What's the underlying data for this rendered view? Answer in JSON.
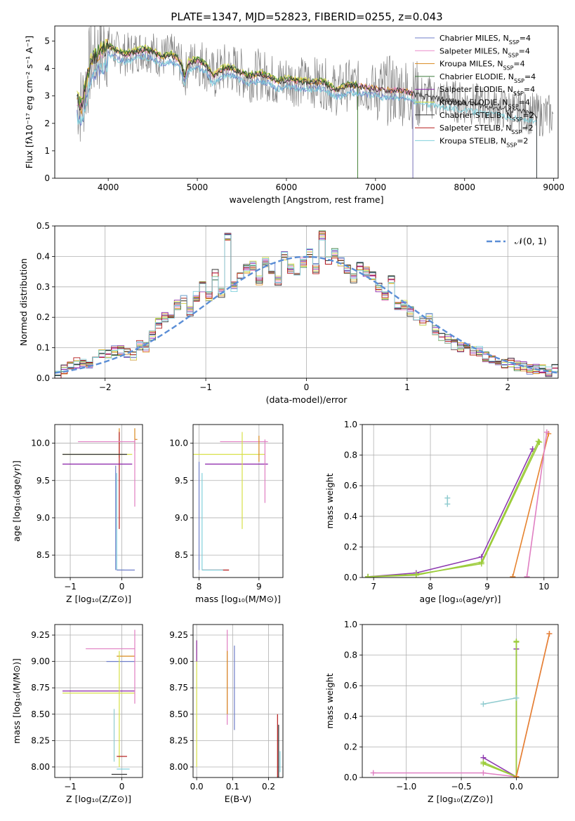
{
  "title": "PLATE=1347, MJD=52823, FIBERID=0255, z=0.043",
  "colors": {
    "chab_miles": "#6f7ec9",
    "salp_miles": "#e98ac9",
    "krou_miles": "#d98a1f",
    "chab_elodie": "#3a7a3a",
    "salp_elodie": "#8a22a8",
    "krou_elodie": "#d8e048",
    "chab_stelib": "#333333",
    "salp_stelib": "#b41a1a",
    "krou_stelib": "#80d0dc",
    "data": "#808080",
    "grid": "#b0b0b0",
    "gauss": "#5b8ed6",
    "w_purple": "#8e3bb0",
    "w_green": "#9ccc3a",
    "w_orange": "#e6832f",
    "w_pink": "#e07fc2",
    "w_teal": "#8fcbcf"
  },
  "legend": [
    {
      "label": "Chabrier MILES, N",
      "sub": "SSP",
      "suffix": "=4",
      "color": "#6f7ec9"
    },
    {
      "label": "Salpeter MILES, N",
      "sub": "SSP",
      "suffix": "=4",
      "color": "#e98ac9"
    },
    {
      "label": "Kroupa MILES, N",
      "sub": "SSP",
      "suffix": "=4",
      "color": "#d98a1f"
    },
    {
      "label": "Chabrier ELODIE, N",
      "sub": "SSP",
      "suffix": "=4",
      "color": "#3a7a3a"
    },
    {
      "label": "Salpeter ELODIE, N",
      "sub": "SSP",
      "suffix": "=4",
      "color": "#8a22a8"
    },
    {
      "label": "Kroupa ELODIE, N",
      "sub": "SSP",
      "suffix": "=4",
      "color": "#d8e048"
    },
    {
      "label": "Chabrier STELIB, N",
      "sub": "SSP",
      "suffix": "=2",
      "color": "#333333"
    },
    {
      "label": "Salpeter STELIB, N",
      "sub": "SSP",
      "suffix": "=2",
      "color": "#b41a1a"
    },
    {
      "label": "Kroupa STELIB, N",
      "sub": "SSP",
      "suffix": "=2",
      "color": "#80d0dc"
    }
  ],
  "gauss_legend": "𝒩(0, 1)",
  "labels": {
    "spec_x": "wavelength [Angstrom, rest frame]",
    "spec_y": "Flux [fλ10⁻¹⁷ erg cm⁻² s⁻¹ A⁻¹]",
    "hist_x": "(data-model)/error",
    "hist_y": "Normed distribution",
    "age_y": "age  [log₁₀(age/yr)]",
    "z_x": "Z [log₁₀(Z/Z⊙)]",
    "mass_x": "mass [log₁₀(M/M⊙)]",
    "mass_y": "mass [log₁₀(M/M⊙)]",
    "ebv_x": "E(B-V)",
    "mw_y": "mass weight",
    "age_x": "age  [log₁₀(age/yr)]"
  },
  "chart_data": [
    {
      "type": "line",
      "id": "spectrum",
      "xlim": [
        3400,
        9050
      ],
      "ylim": [
        0,
        5.55
      ],
      "xticks": [
        4000,
        5000,
        6000,
        7000,
        8000,
        9000
      ],
      "yticks": [
        0,
        1,
        2,
        3,
        4,
        5
      ],
      "grid": false,
      "legend_position": "top-right",
      "data_anchor_x": [
        3650,
        3700,
        3800,
        3900,
        4000,
        4100,
        4200,
        4300,
        4400,
        4500,
        4600,
        4700,
        4800,
        4861,
        4900,
        5000,
        5100,
        5175,
        5300,
        5400,
        5500,
        5600,
        5700,
        5800,
        5890,
        6000,
        6200,
        6400,
        6563,
        6700,
        6900,
        7100,
        7300,
        7500,
        7700,
        7900,
        8100,
        8300,
        8500,
        8700,
        8810
      ],
      "data_anchor_y": [
        2.9,
        2.6,
        4.2,
        4.6,
        4.8,
        4.6,
        4.5,
        4.6,
        4.7,
        4.6,
        4.4,
        4.5,
        4.3,
        3.7,
        4.2,
        4.3,
        4.1,
        3.7,
        4.0,
        4.0,
        3.8,
        3.7,
        3.8,
        3.7,
        3.5,
        3.6,
        3.5,
        3.5,
        3.2,
        3.4,
        3.3,
        3.2,
        3.2,
        3.0,
        2.9,
        2.8,
        2.7,
        2.6,
        2.5,
        2.4,
        2.3
      ],
      "model_end_x": 8810
    },
    {
      "type": "bar",
      "id": "residual-histogram",
      "xlim": [
        -2.5,
        2.5
      ],
      "ylim": [
        0,
        0.5
      ],
      "xticks": [
        -2,
        -1,
        0,
        1,
        2
      ],
      "yticks": [
        0.0,
        0.1,
        0.2,
        0.3,
        0.4,
        0.5
      ],
      "grid": true,
      "bin_width": 0.1,
      "bin_start": -2.5,
      "base_values": [
        0.01,
        0.03,
        0.04,
        0.05,
        0.05,
        0.05,
        0.06,
        0.08,
        0.08,
        0.09,
        0.09,
        0.08,
        0.07,
        0.11,
        0.1,
        0.14,
        0.18,
        0.2,
        0.2,
        0.24,
        0.26,
        0.22,
        0.27,
        0.3,
        0.27,
        0.34,
        0.28,
        0.46,
        0.3,
        0.33,
        0.36,
        0.37,
        0.32,
        0.38,
        0.36,
        0.32,
        0.4,
        0.36,
        0.35,
        0.38,
        0.41,
        0.36,
        0.47,
        0.39,
        0.41,
        0.38,
        0.36,
        0.33,
        0.37,
        0.35,
        0.34,
        0.3,
        0.27,
        0.32,
        0.24,
        0.24,
        0.22,
        0.2,
        0.19,
        0.2,
        0.16,
        0.14,
        0.13,
        0.11,
        0.1,
        0.1,
        0.09,
        0.09,
        0.07,
        0.06,
        0.06,
        0.05,
        0.05,
        0.04,
        0.04,
        0.03,
        0.03,
        0.03,
        0.02,
        0.03
      ],
      "gaussian": {
        "name": "𝒩(0, 1)",
        "mean": 0,
        "sigma": 1
      }
    },
    {
      "type": "scatter",
      "id": "age-vs-z",
      "xlim": [
        -1.3,
        0.4
      ],
      "ylim": [
        8.2,
        10.25
      ],
      "xticks": [
        -1,
        0
      ],
      "yticks": [
        8.5,
        9.0,
        9.5,
        10.0
      ],
      "grid": true,
      "points": [
        {
          "x": -0.05,
          "y": 10.0,
          "xerr": [
            0.0,
            0.0
          ],
          "yerr": [
            0.2,
            0.2
          ],
          "color": "#d98a1f"
        },
        {
          "x": 0.25,
          "y": 10.05,
          "xerr": [
            0.0,
            0.05
          ],
          "yerr": [
            0.15,
            0.15
          ],
          "color": "#d98a1f"
        },
        {
          "x": -0.05,
          "y": 9.4,
          "xerr": [
            0,
            0
          ],
          "yerr": [
            0.55,
            0.75
          ],
          "color": "#b41a1a"
        },
        {
          "x": 0.25,
          "y": 9.65,
          "xerr": [
            0,
            0
          ],
          "yerr": [
            0.5,
            0.4
          ],
          "color": "#e07fc2"
        },
        {
          "x": -0.15,
          "y": 10.02,
          "xerr": [
            0.7,
            0.4
          ],
          "yerr": [
            0,
            0
          ],
          "color": "#e07fc2"
        },
        {
          "x": -0.2,
          "y": 9.85,
          "xerr": [
            0.95,
            0.4
          ],
          "yerr": [
            0,
            0
          ],
          "color": "#d8e048"
        },
        {
          "x": -0.25,
          "y": 9.85,
          "xerr": [
            0.9,
            0.35
          ],
          "yerr": [
            0,
            0
          ],
          "color": "#333333"
        },
        {
          "x": -0.3,
          "y": 9.72,
          "xerr": [
            0.85,
            0.5
          ],
          "yerr": [
            0,
            0
          ],
          "color": "#8a22a8"
        },
        {
          "x": -0.12,
          "y": 9.0,
          "xerr": [
            0,
            0
          ],
          "yerr": [
            0.7,
            0.7
          ],
          "color": "#6f7ec9"
        },
        {
          "x": -0.1,
          "y": 8.3,
          "xerr": [
            0,
            0.15
          ],
          "yerr": [
            0,
            1.3
          ],
          "color": "#80d0dc"
        },
        {
          "x": 0.0,
          "y": 8.3,
          "xerr": [
            0.1,
            0.25
          ],
          "yerr": [
            0,
            0
          ],
          "color": "#6f7ec9"
        }
      ]
    },
    {
      "type": "scatter",
      "id": "age-vs-mass",
      "xlim": [
        7.9,
        9.4
      ],
      "ylim": [
        8.2,
        10.25
      ],
      "xticks": [
        8,
        9
      ],
      "yticks": [
        8.5,
        9.0,
        9.5,
        10.0
      ],
      "grid": true,
      "points": [
        {
          "x": 8.7,
          "y": 9.85,
          "xerr": [
            0.8,
            0.4
          ],
          "yerr": [
            0,
            0
          ],
          "color": "#d8e048"
        },
        {
          "x": 8.7,
          "y": 9.72,
          "xerr": [
            0.6,
            0.45
          ],
          "yerr": [
            0,
            0
          ],
          "color": "#8a22a8"
        },
        {
          "x": 8.8,
          "y": 10.02,
          "xerr": [
            0.45,
            0.35
          ],
          "yerr": [
            0,
            0
          ],
          "color": "#e07fc2"
        },
        {
          "x": 8.72,
          "y": 9.4,
          "xerr": [
            0,
            0
          ],
          "yerr": [
            0.55,
            0.75
          ],
          "color": "#d8e048"
        },
        {
          "x": 9.0,
          "y": 9.9,
          "xerr": [
            0,
            0
          ],
          "yerr": [
            0.15,
            0.2
          ],
          "color": "#d98a1f"
        },
        {
          "x": 9.1,
          "y": 9.65,
          "xerr": [
            0,
            0
          ],
          "yerr": [
            0.45,
            0.4
          ],
          "color": "#e07fc2"
        },
        {
          "x": 8.0,
          "y": 9.0,
          "xerr": [
            0,
            0
          ],
          "yerr": [
            0.7,
            0.75
          ],
          "color": "#6f7ec9"
        },
        {
          "x": 8.15,
          "y": 8.3,
          "xerr": [
            0.1,
            0.35
          ],
          "yerr": [
            0,
            0
          ],
          "color": "#b41a1a"
        },
        {
          "x": 8.05,
          "y": 8.3,
          "xerr": [
            0,
            0.35
          ],
          "yerr": [
            0,
            1.3
          ],
          "color": "#80d0dc"
        }
      ]
    },
    {
      "type": "line",
      "id": "mass-weight-vs-age",
      "xlim": [
        6.8,
        10.25
      ],
      "ylim": [
        0,
        1
      ],
      "xticks": [
        7,
        8,
        9,
        10
      ],
      "yticks": [
        0.0,
        0.2,
        0.4,
        0.6,
        0.8,
        1.0
      ],
      "grid": true,
      "series": [
        {
          "color": "#8e3bb0",
          "x": [
            6.9,
            7.75,
            8.9,
            9.8
          ],
          "y": [
            0.005,
            0.03,
            0.135,
            0.84
          ]
        },
        {
          "color": "#9ccc3a",
          "x": [
            6.9,
            7.75,
            8.9,
            9.9
          ],
          "y": [
            0.005,
            0.015,
            0.1,
            0.89
          ]
        },
        {
          "color": "#9ccc3a",
          "x": [
            6.9,
            7.75,
            8.9,
            9.92
          ],
          "y": [
            0.005,
            0.02,
            0.09,
            0.885
          ]
        },
        {
          "color": "#e6832f",
          "x": [
            9.45,
            10.08
          ],
          "y": [
            0.005,
            0.94
          ]
        },
        {
          "color": "#e07fc2",
          "x": [
            9.7,
            10.05
          ],
          "y": [
            0.005,
            0.95
          ]
        },
        {
          "color": "#8fcbcf",
          "x": [
            8.3,
            8.3
          ],
          "y": [
            0.48,
            0.52
          ]
        }
      ]
    },
    {
      "type": "scatter",
      "id": "mass-vs-z",
      "xlim": [
        -1.3,
        0.4
      ],
      "ylim": [
        7.9,
        9.35
      ],
      "xticks": [
        -1,
        0
      ],
      "yticks": [
        8.0,
        8.25,
        8.5,
        8.75,
        9.0,
        9.25
      ],
      "grid": true,
      "points": [
        {
          "x": -0.2,
          "y": 8.72,
          "xerr": [
            0.95,
            0.45
          ],
          "yerr": [
            0,
            0
          ],
          "color": "#8a22a8"
        },
        {
          "x": -0.25,
          "y": 8.7,
          "xerr": [
            0.9,
            0.5
          ],
          "yerr": [
            0,
            0
          ],
          "color": "#d8e048"
        },
        {
          "x": -0.3,
          "y": 9.12,
          "xerr": [
            0.4,
            0.55
          ],
          "yerr": [
            0,
            0
          ],
          "color": "#e07fc2"
        },
        {
          "x": 0.0,
          "y": 9.05,
          "xerr": [
            0.1,
            0.25
          ],
          "yerr": [
            0,
            0
          ],
          "color": "#d98a1f"
        },
        {
          "x": -0.15,
          "y": 9.0,
          "xerr": [
            0.15,
            0.4
          ],
          "yerr": [
            0,
            0
          ],
          "color": "#6f7ec9"
        },
        {
          "x": 0.25,
          "y": 8.9,
          "xerr": [
            0,
            0
          ],
          "yerr": [
            0.3,
            0.4
          ],
          "color": "#e07fc2"
        },
        {
          "x": -0.05,
          "y": 8.5,
          "xerr": [
            0,
            0
          ],
          "yerr": [
            0.5,
            0.6
          ],
          "color": "#d8e048"
        },
        {
          "x": -0.1,
          "y": 8.1,
          "xerr": [
            0,
            0.2
          ],
          "yerr": [
            0,
            0
          ],
          "color": "#b41a1a"
        },
        {
          "x": 0.0,
          "y": 7.98,
          "xerr": [
            0.1,
            0.15
          ],
          "yerr": [
            0,
            0
          ],
          "color": "#80d0dc"
        },
        {
          "x": 0.0,
          "y": 7.93,
          "xerr": [
            0.2,
            0.1
          ],
          "yerr": [
            0,
            0
          ],
          "color": "#333333"
        },
        {
          "x": -0.15,
          "y": 8.3,
          "xerr": [
            0,
            0
          ],
          "yerr": [
            0.25,
            0.25
          ],
          "color": "#8fcbcf"
        }
      ]
    },
    {
      "type": "scatter",
      "id": "mass-vs-ebv",
      "xlim": [
        -0.01,
        0.24
      ],
      "ylim": [
        7.9,
        9.35
      ],
      "xticks": [
        0.0,
        0.1,
        0.2
      ],
      "yticks": [
        8.0,
        8.25,
        8.5,
        8.75,
        9.0,
        9.25
      ],
      "grid": true,
      "points": [
        {
          "x": 0.0,
          "y": 8.6,
          "xerr": [
            0,
            0
          ],
          "yerr": [
            0.6,
            0.6
          ],
          "color": "#d8e048"
        },
        {
          "x": 0.0,
          "y": 9.1,
          "xerr": [
            0,
            0
          ],
          "yerr": [
            0.1,
            0.1
          ],
          "color": "#8a22a8"
        },
        {
          "x": 0.085,
          "y": 8.85,
          "xerr": [
            0,
            0
          ],
          "yerr": [
            0.45,
            0.45
          ],
          "color": "#e07fc2"
        },
        {
          "x": 0.085,
          "y": 8.8,
          "xerr": [
            0,
            0
          ],
          "yerr": [
            0.3,
            0.3
          ],
          "color": "#d98a1f"
        },
        {
          "x": 0.105,
          "y": 8.75,
          "xerr": [
            0,
            0
          ],
          "yerr": [
            0.4,
            0.4
          ],
          "color": "#6f7ec9"
        },
        {
          "x": 0.225,
          "y": 8.2,
          "xerr": [
            0,
            0
          ],
          "yerr": [
            0.3,
            0.3
          ],
          "color": "#b41a1a"
        },
        {
          "x": 0.228,
          "y": 8.15,
          "xerr": [
            0,
            0
          ],
          "yerr": [
            0.25,
            0.25
          ],
          "color": "#333333"
        },
        {
          "x": 0.232,
          "y": 8.05,
          "xerr": [
            0,
            0
          ],
          "yerr": [
            0.1,
            0.1
          ],
          "color": "#80d0dc"
        }
      ]
    },
    {
      "type": "line",
      "id": "mass-weight-vs-z",
      "xlim": [
        -1.4,
        0.38
      ],
      "ylim": [
        0,
        1
      ],
      "xticks": [
        -1.0,
        -0.5,
        0.0
      ],
      "yticks": [
        0.0,
        0.2,
        0.4,
        0.6,
        0.8,
        1.0
      ],
      "grid": true,
      "series": [
        {
          "color": "#e07fc2",
          "x": [
            -1.3,
            -0.3,
            0.0,
            0.3
          ],
          "y": [
            0.03,
            0.03,
            0.005,
            0.94
          ]
        },
        {
          "color": "#8e3bb0",
          "x": [
            -0.3,
            0.0,
            0.0
          ],
          "y": [
            0.13,
            0.005,
            0.84
          ]
        },
        {
          "color": "#9ccc3a",
          "x": [
            -0.3,
            0.0,
            0.0
          ],
          "y": [
            0.1,
            0.005,
            0.89
          ]
        },
        {
          "color": "#9ccc3a",
          "x": [
            -0.3,
            0.0,
            0.0
          ],
          "y": [
            0.09,
            0.005,
            0.885
          ]
        },
        {
          "color": "#e6832f",
          "x": [
            0.0,
            0.3
          ],
          "y": [
            0.005,
            0.94
          ]
        },
        {
          "color": "#8fcbcf",
          "x": [
            -0.3,
            0.0
          ],
          "y": [
            0.48,
            0.52
          ]
        }
      ]
    }
  ]
}
